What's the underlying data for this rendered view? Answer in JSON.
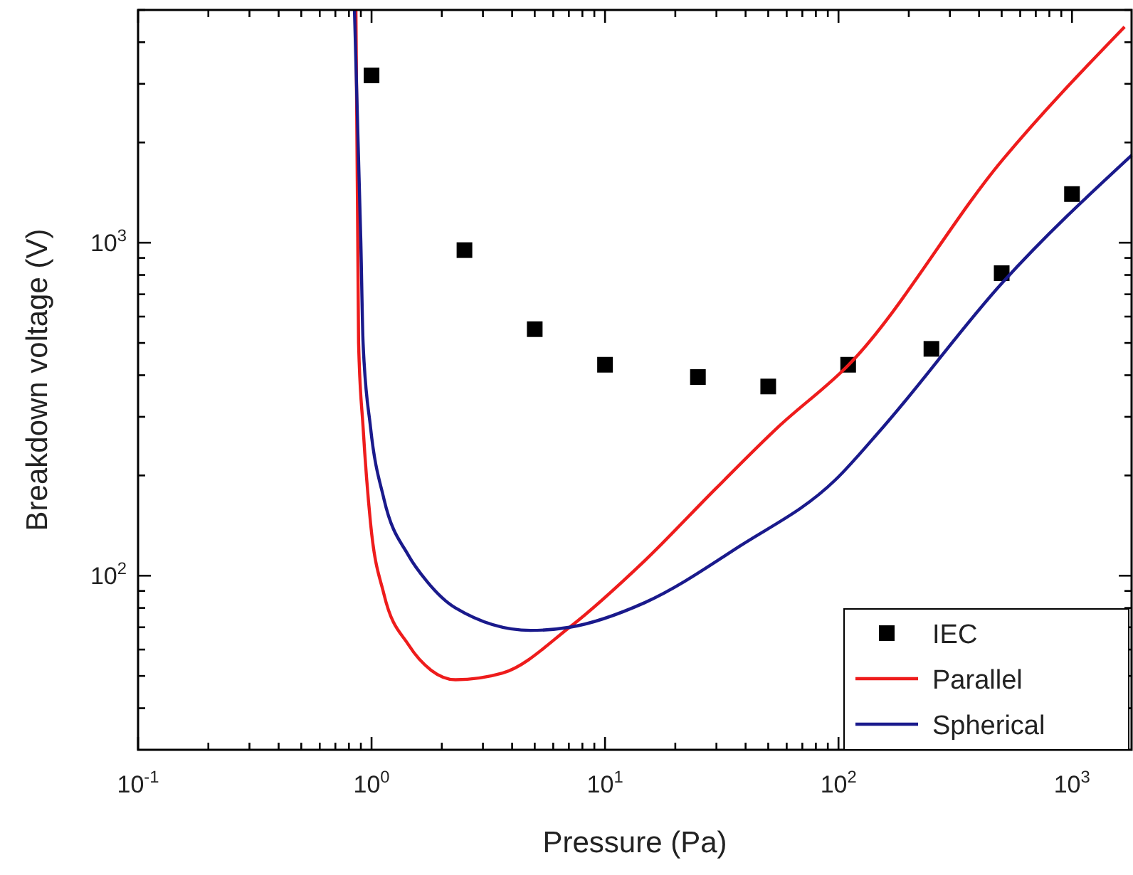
{
  "chart_data": {
    "type": "line",
    "xlabel": "Pressure (Pa)",
    "ylabel": "Breakdown voltage (V)",
    "log": "xy",
    "xlim": [
      0.1,
      1800
    ],
    "ylim": [
      30,
      5000
    ],
    "xticks": [
      {
        "value": 0.1,
        "label": "10$^{-1}$"
      },
      {
        "value": 0.2,
        "label": null
      },
      {
        "value": 0.3,
        "label": null
      },
      {
        "value": 0.4,
        "label": null
      },
      {
        "value": 0.5,
        "label": null
      },
      {
        "value": 0.6,
        "label": null
      },
      {
        "value": 0.7,
        "label": null
      },
      {
        "value": 0.8,
        "label": null
      },
      {
        "value": 0.9,
        "label": null
      },
      {
        "value": 1,
        "label": "10$^{0}$"
      },
      {
        "value": 2,
        "label": null
      },
      {
        "value": 3,
        "label": null
      },
      {
        "value": 4,
        "label": null
      },
      {
        "value": 5,
        "label": null
      },
      {
        "value": 6,
        "label": null
      },
      {
        "value": 7,
        "label": null
      },
      {
        "value": 8,
        "label": null
      },
      {
        "value": 9,
        "label": null
      },
      {
        "value": 10,
        "label": "10$^{1}$"
      },
      {
        "value": 20,
        "label": null
      },
      {
        "value": 30,
        "label": null
      },
      {
        "value": 40,
        "label": null
      },
      {
        "value": 50,
        "label": null
      },
      {
        "value": 60,
        "label": null
      },
      {
        "value": 70,
        "label": null
      },
      {
        "value": 80,
        "label": null
      },
      {
        "value": 90,
        "label": null
      },
      {
        "value": 100,
        "label": "10$^{2}$"
      },
      {
        "value": 200,
        "label": null
      },
      {
        "value": 300,
        "label": null
      },
      {
        "value": 400,
        "label": null
      },
      {
        "value": 500,
        "label": null
      },
      {
        "value": 600,
        "label": null
      },
      {
        "value": 700,
        "label": null
      },
      {
        "value": 800,
        "label": null
      },
      {
        "value": 900,
        "label": null
      },
      {
        "value": 1000,
        "label": "10$^{3}$"
      }
    ],
    "yticks": [
      {
        "value": 40,
        "label": null
      },
      {
        "value": 50,
        "label": null
      },
      {
        "value": 60,
        "label": null
      },
      {
        "value": 70,
        "label": null
      },
      {
        "value": 80,
        "label": null
      },
      {
        "value": 90,
        "label": null
      },
      {
        "value": 100,
        "label": "10$^{2}$"
      },
      {
        "value": 200,
        "label": null
      },
      {
        "value": 300,
        "label": null
      },
      {
        "value": 400,
        "label": null
      },
      {
        "value": 500,
        "label": null
      },
      {
        "value": 600,
        "label": null
      },
      {
        "value": 700,
        "label": null
      },
      {
        "value": 800,
        "label": null
      },
      {
        "value": 900,
        "label": null
      },
      {
        "value": 1000,
        "label": "10$^{3}$"
      },
      {
        "value": 2000,
        "label": null
      },
      {
        "value": 3000,
        "label": null
      },
      {
        "value": 4000,
        "label": null
      },
      {
        "value": 5000,
        "label": null
      }
    ],
    "grid": false,
    "legend": "bottom right",
    "series": [
      {
        "name": "IEC",
        "type": "scatter",
        "marker": "square",
        "color": "#000000",
        "x": [
          1,
          2.5,
          5,
          10,
          25,
          50,
          110,
          250,
          500,
          1000
        ],
        "values": [
          3180,
          950,
          550,
          430,
          395,
          370,
          430,
          480,
          810,
          1400
        ]
      },
      {
        "name": "Parallel",
        "marker": "none",
        "line_style": "solid",
        "color": "#ee1c1c",
        "x": [
          0.857,
          0.88,
          0.92,
          0.99,
          1.13,
          1.44,
          1.8,
          2.29,
          3.64,
          7.05,
          14.8,
          29.9,
          55,
          111,
          503,
          1680
        ],
        "values": [
          5000,
          500,
          279,
          144,
          88,
          62,
          52,
          48.7,
          51,
          70,
          111,
          183,
          279,
          431,
          1770,
          4450
        ]
      },
      {
        "name": "Spherical",
        "marker": "none",
        "line_style": "solid",
        "color": "#1a1a8c",
        "x": [
          0.845,
          0.9,
          0.92,
          0.99,
          1.13,
          1.44,
          1.73,
          2.29,
          4.8,
          7.05,
          14.8,
          38,
          97,
          155,
          503,
          1800
        ],
        "values": [
          5000,
          1000,
          500,
          279,
          170,
          115,
          96,
          80,
          68.5,
          70,
          83,
          123,
          194,
          279,
          758,
          1830
        ]
      }
    ]
  }
}
